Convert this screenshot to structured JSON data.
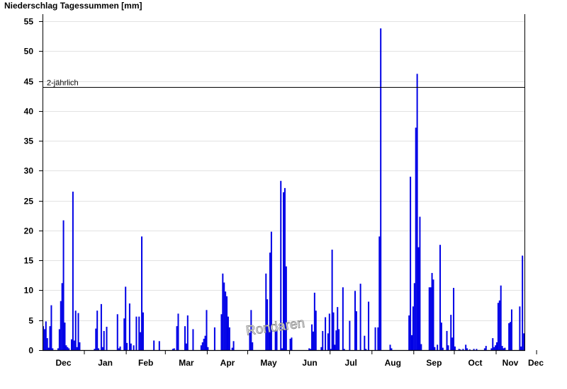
{
  "chart_data": {
    "type": "bar",
    "title": "Niederschlag Tagessummen [mm]",
    "xlabel": "",
    "ylabel": "",
    "ylim": [
      0,
      55
    ],
    "yticks": [
      0,
      5,
      10,
      15,
      20,
      25,
      30,
      35,
      40,
      45,
      50,
      55
    ],
    "month_labels": [
      "Dec",
      "Jan",
      "Feb",
      "Mar",
      "Apr",
      "May",
      "Jun",
      "Jul",
      "Aug",
      "Sep",
      "Oct",
      "Nov",
      "Dec"
    ],
    "grid": true,
    "bar_color": "#0000e6",
    "reference_line": {
      "label": "2-jährlich",
      "value": 44
    },
    "watermark": "Rondaren",
    "series": [
      {
        "values": [
          4.0,
          3.5,
          4.8,
          2.0,
          0.4,
          4.0,
          7.5,
          0.3,
          0,
          0,
          0,
          0.3,
          3.5,
          8.2,
          11.2,
          21.7,
          4.6,
          0.8,
          0.5,
          0.3,
          0,
          1.8,
          26.5,
          1.6,
          6.6,
          0.5,
          6.2,
          1.3,
          0,
          0,
          0,
          0,
          0,
          0,
          0,
          0,
          0,
          0,
          0.2,
          3.6,
          6.6,
          0.3,
          0,
          7.7,
          0.5,
          3.2,
          0,
          3.9,
          0,
          0,
          0,
          0,
          0,
          0,
          0,
          6.0,
          0.3,
          0.6,
          0,
          0,
          5.3,
          10.6,
          1.2,
          0,
          7.8,
          1.1,
          0,
          0.8,
          0,
          5.6,
          0,
          5.6,
          3.0,
          19.0,
          6.3,
          0,
          0,
          0,
          0,
          0,
          0,
          0,
          1.6,
          0,
          0,
          0,
          1.5,
          0,
          0,
          0,
          0,
          0,
          0,
          0,
          0,
          0,
          0.2,
          0.3,
          0,
          4.0,
          6.1,
          0,
          0,
          0,
          0,
          4.0,
          1.1,
          5.8,
          0,
          0,
          0,
          3.5,
          0,
          0,
          0,
          0,
          0,
          0.8,
          1.3,
          1.9,
          2.4,
          6.7,
          0.5,
          0,
          0,
          0,
          0,
          3.8,
          0,
          0,
          0,
          0,
          6.0,
          12.8,
          11.3,
          9.8,
          9.0,
          5.6,
          3.8,
          0,
          0.4,
          1.5,
          0,
          0,
          0,
          0,
          0,
          0,
          0,
          0,
          0,
          0,
          0,
          2.9,
          6.7,
          1.3,
          0,
          0,
          0,
          0,
          0,
          0,
          0,
          0,
          0,
          12.8,
          8.5,
          3.9,
          16.3,
          19.8,
          0,
          0,
          3.1,
          4.0,
          0,
          0,
          28.3,
          0.3,
          26.4,
          27.1,
          14.0,
          0,
          0,
          1.9,
          2.1,
          0,
          0,
          0,
          0,
          0,
          0,
          0,
          0,
          0,
          0,
          0,
          0,
          0.3,
          0.2,
          4.3,
          3.1,
          9.6,
          6.6,
          0,
          0,
          0,
          0.5,
          3.2,
          0,
          5.5,
          0,
          2.8,
          6.1,
          0.2,
          16.8,
          6.3,
          0.9,
          3.3,
          7.2,
          3.5,
          0,
          0,
          10.5,
          0.2,
          0,
          0,
          0,
          4.9,
          0,
          0,
          0,
          9.9,
          6.5,
          0,
          0,
          11.1,
          0,
          0,
          2.4,
          0.2,
          0,
          8.1,
          0,
          0,
          0,
          0,
          3.8,
          0,
          3.8,
          19.0,
          53.8,
          0,
          0,
          0,
          0,
          0,
          0,
          0.9,
          0.3,
          0,
          0,
          0,
          0,
          0,
          0,
          0,
          0,
          0,
          0,
          0,
          0,
          5.8,
          29.0,
          2.5,
          7.3,
          11.2,
          37.2,
          46.2,
          17.2,
          22.3,
          1.0,
          0,
          0,
          0,
          0,
          0,
          10.5,
          10.5,
          12.9,
          11.8,
          0.5,
          0,
          0.9,
          0,
          17.6,
          4.6,
          0.4,
          0,
          0,
          3.2,
          0.8,
          0,
          5.9,
          2.1,
          10.4,
          0.6,
          0,
          0,
          0.2,
          0.1,
          0,
          0.2,
          0,
          0.9,
          0.3,
          0,
          0.1,
          0,
          0,
          0.2,
          0,
          0.2,
          0,
          0,
          0,
          0,
          0,
          0.3,
          0.7,
          0,
          0,
          0,
          0.3,
          2.0,
          0.5,
          0.8,
          1.3,
          7.9,
          8.3,
          10.8,
          0.7,
          0.3,
          0.4,
          0,
          0,
          4.5,
          4.7,
          6.8,
          0,
          0,
          0,
          0,
          0,
          7.3,
          0.6,
          15.8,
          2.8
        ]
      }
    ]
  }
}
